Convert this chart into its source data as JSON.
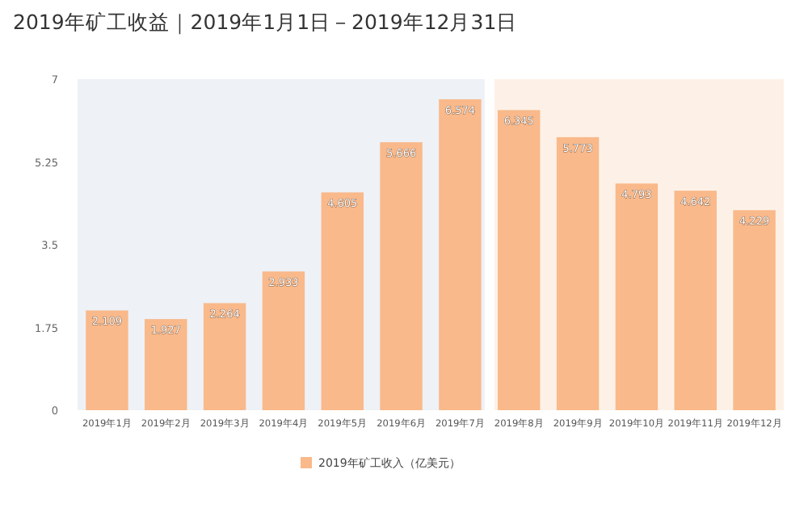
{
  "chart_data": {
    "type": "bar",
    "title": "2019年矿工收益｜2019年1月1日－2019年12月31日",
    "categories": [
      "2019年1月",
      "2019年2月",
      "2019年3月",
      "2019年4月",
      "2019年5月",
      "2019年6月",
      "2019年7月",
      "2019年8月",
      "2019年9月",
      "2019年10月",
      "2019年11月",
      "2019年12月"
    ],
    "series": [
      {
        "name": "2019年矿工收入（亿美元）",
        "color": "#f9b98a",
        "values": [
          2.109,
          1.927,
          2.264,
          2.933,
          4.605,
          5.666,
          6.574,
          6.345,
          5.773,
          4.793,
          4.642,
          4.229
        ]
      }
    ],
    "ylim": [
      0,
      7
    ],
    "yticks": [
      0,
      1.75,
      3.5,
      5.25,
      7
    ],
    "data_labels": true,
    "legend": "bottom",
    "bands": [
      {
        "axis": "x",
        "from": "2019年1月",
        "to": "2019年7月",
        "color": "#eef1f6"
      },
      {
        "axis": "x",
        "from": "2019年8月",
        "to": "2019年12月",
        "color": "#fdf1e7"
      }
    ]
  }
}
